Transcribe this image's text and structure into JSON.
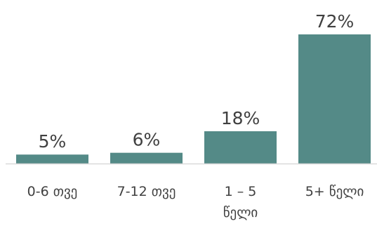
{
  "chart_data": {
    "type": "bar",
    "categories": [
      [
        "0-6 თვე"
      ],
      [
        "7-12 თვე"
      ],
      [
        "1 – 5",
        "წელი"
      ],
      [
        "5+ წელი"
      ]
    ],
    "values": [
      5,
      6,
      18,
      72
    ],
    "data_labels": [
      "5%",
      "6%",
      "18%",
      "72%"
    ],
    "unit": "%",
    "ylim": [
      0,
      72
    ],
    "grid": false,
    "legend": "none",
    "colors": {
      "bar": "#548a87",
      "axis": "#d9d9d9",
      "text": "#404040"
    }
  }
}
